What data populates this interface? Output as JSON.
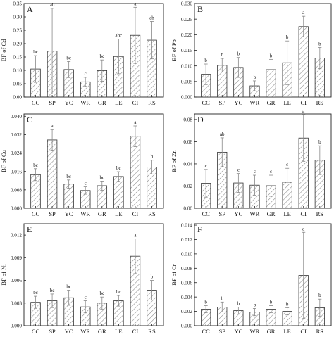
{
  "chart_data": [
    {
      "panel": "A",
      "type": "bar",
      "ylabel": "BF of Cd",
      "categories": [
        "CC",
        "SP",
        "YC",
        "WR",
        "GR",
        "LE",
        "CI",
        "RS"
      ],
      "values": [
        0.105,
        0.172,
        0.103,
        0.057,
        0.099,
        0.152,
        0.231,
        0.213
      ],
      "errors": [
        0.05,
        0.16,
        0.03,
        0.017,
        0.04,
        0.065,
        0.105,
        0.07
      ],
      "letters": [
        "bc",
        "ab",
        "bc",
        "c",
        "bc",
        "abc",
        "a",
        "ab"
      ],
      "ylim": [
        0,
        0.35
      ],
      "yticks": [
        "0.00",
        "0.05",
        "0.10",
        "0.15",
        "0.20",
        "0.25",
        "0.30",
        "0.35"
      ]
    },
    {
      "panel": "B",
      "type": "bar",
      "ylabel": "BF of Pb",
      "categories": [
        "CC",
        "SP",
        "YC",
        "WR",
        "GR",
        "LE",
        "CI",
        "RS"
      ],
      "values": [
        0.0073,
        0.0102,
        0.0095,
        0.0036,
        0.0088,
        0.011,
        0.0226,
        0.0125
      ],
      "errors": [
        0.0033,
        0.0022,
        0.0032,
        0.0016,
        0.0033,
        0.007,
        0.0033,
        0.0034
      ],
      "letters": [
        "b",
        "b",
        "b",
        "b",
        "b",
        "b",
        "a",
        "b"
      ],
      "ylim": [
        0,
        0.03
      ],
      "yticks": [
        "0.000",
        "0.005",
        "0.010",
        "0.015",
        "0.020",
        "0.025",
        "0.030"
      ]
    },
    {
      "panel": "C",
      "type": "bar",
      "ylabel": "BF of Cu",
      "categories": [
        "CC",
        "SP",
        "YC",
        "WR",
        "GR",
        "LE",
        "CI",
        "RS"
      ],
      "values": [
        0.0146,
        0.0297,
        0.0105,
        0.0077,
        0.0098,
        0.0138,
        0.0313,
        0.0179
      ],
      "errors": [
        0.0026,
        0.0045,
        0.0018,
        0.0016,
        0.002,
        0.0021,
        0.0045,
        0.003
      ],
      "letters": [
        "bc",
        "a",
        "bc",
        "c",
        "bc",
        "bc",
        "a",
        "b"
      ],
      "ylim": [
        0,
        0.041
      ],
      "yticks": [
        "0.000",
        "0.008",
        "0.016",
        "0.024",
        "0.032",
        "0.040"
      ]
    },
    {
      "panel": "D",
      "type": "bar",
      "ylabel": "BF of Zn",
      "categories": [
        "CC",
        "SP",
        "YC",
        "WR",
        "GR",
        "LE",
        "CI",
        "RS"
      ],
      "values": [
        0.0225,
        0.0505,
        0.0228,
        0.0208,
        0.0203,
        0.0235,
        0.0633,
        0.0433
      ],
      "errors": [
        0.0125,
        0.013,
        0.0085,
        0.009,
        0.0095,
        0.0125,
        0.021,
        0.013
      ],
      "letters": [
        "c",
        "ab",
        "c",
        "c",
        "c",
        "c",
        "a",
        "b"
      ],
      "ylim": [
        0,
        0.085
      ],
      "yticks": [
        "0.00",
        "0.02",
        "0.04",
        "0.06",
        "0.08"
      ]
    },
    {
      "panel": "E",
      "type": "bar",
      "ylabel": "BF of Ni",
      "categories": [
        "CC",
        "SP",
        "YC",
        "WR",
        "GR",
        "LE",
        "CI",
        "RS"
      ],
      "values": [
        0.0031,
        0.0033,
        0.0037,
        0.0025,
        0.003,
        0.0033,
        0.0092,
        0.0047
      ],
      "errors": [
        0.0008,
        0.0009,
        0.001,
        0.0008,
        0.0008,
        0.0007,
        0.0023,
        0.0013
      ],
      "letters": [
        "bc",
        "bc",
        "bc",
        "c",
        "bc",
        "bc",
        "a",
        "b"
      ],
      "ylim": [
        0,
        0.0135
      ],
      "yticks": [
        "0.000",
        "0.003",
        "0.006",
        "0.009",
        "0.012"
      ]
    },
    {
      "panel": "F",
      "type": "bar",
      "ylabel": "BF of Cr",
      "categories": [
        "CC",
        "SP",
        "YC",
        "WR",
        "GR",
        "LE",
        "CI",
        "RS"
      ],
      "values": [
        0.0023,
        0.0026,
        0.0021,
        0.0019,
        0.0023,
        0.002,
        0.007,
        0.0025
      ],
      "errors": [
        0.0005,
        0.0007,
        0.0005,
        0.0005,
        0.0005,
        0.0005,
        0.006,
        0.0012
      ],
      "letters": [
        "b",
        "b",
        "b",
        "b",
        "b",
        "b",
        "a",
        "b"
      ],
      "ylim": [
        0,
        0.0142
      ],
      "yticks": [
        "0.000",
        "0.002",
        "0.004",
        "0.006",
        "0.008",
        "0.010",
        "0.012",
        "0.014"
      ]
    }
  ]
}
